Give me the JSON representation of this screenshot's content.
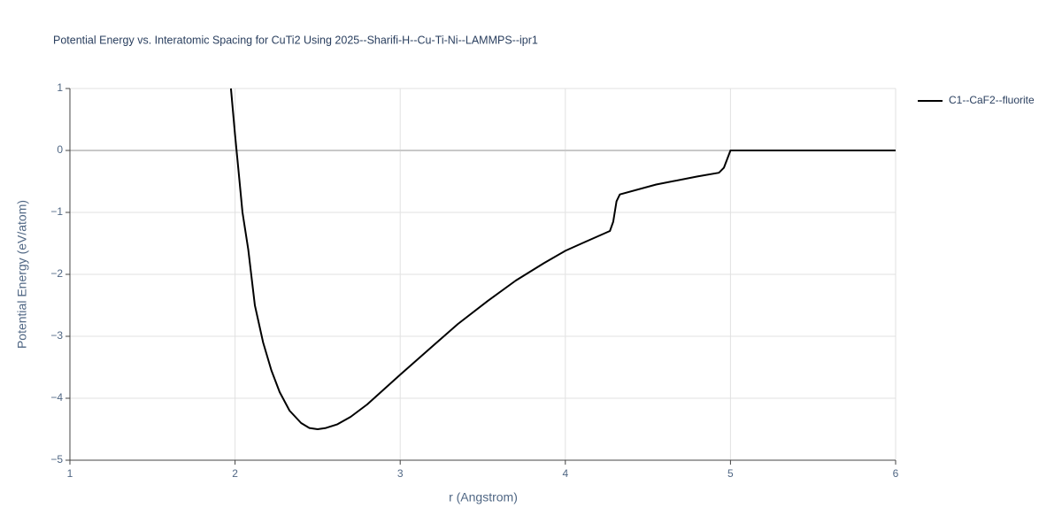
{
  "chart_data": {
    "type": "line",
    "title": "Potential Energy vs. Interatomic Spacing for CuTi2 Using 2025--Sharifi-H--Cu-Ti-Ni--LAMMPS--ipr1",
    "xlabel": "r (Angstrom)",
    "ylabel": "Potential Energy (eV/atom)",
    "x": [
      1.975,
      2.0,
      2.02,
      2.045,
      2.08,
      2.12,
      2.17,
      2.22,
      2.27,
      2.33,
      2.4,
      2.45,
      2.5,
      2.55,
      2.62,
      2.7,
      2.8,
      3.0,
      3.2,
      3.35,
      3.53,
      3.7,
      3.87,
      4.0,
      4.1,
      4.27,
      4.29,
      4.31,
      4.33,
      4.55,
      4.8,
      4.93,
      4.96,
      5.0,
      6.0
    ],
    "series": [
      {
        "name": "C1--CaF2--fluorite",
        "color": "#000000",
        "values": [
          1.0,
          0.25,
          -0.3,
          -1.0,
          -1.6,
          -2.5,
          -3.1,
          -3.55,
          -3.9,
          -4.2,
          -4.4,
          -4.48,
          -4.5,
          -4.48,
          -4.42,
          -4.3,
          -4.1,
          -3.62,
          -3.15,
          -2.8,
          -2.43,
          -2.1,
          -1.82,
          -1.62,
          -1.5,
          -1.3,
          -1.15,
          -0.82,
          -0.71,
          -0.55,
          -0.42,
          -0.36,
          -0.28,
          0,
          0
        ]
      }
    ],
    "xlim": [
      1,
      6
    ],
    "xticks": [
      1,
      2,
      3,
      4,
      5,
      6
    ],
    "ylim": [
      -5,
      1
    ],
    "yticks": [
      {
        "value": -5,
        "label": "−5"
      },
      {
        "value": -4,
        "label": "−4"
      },
      {
        "value": -3,
        "label": "−3"
      },
      {
        "value": -2,
        "label": "−2"
      },
      {
        "value": -1,
        "label": "−1"
      },
      0,
      1
    ],
    "grid": true,
    "legend": "upper right"
  }
}
